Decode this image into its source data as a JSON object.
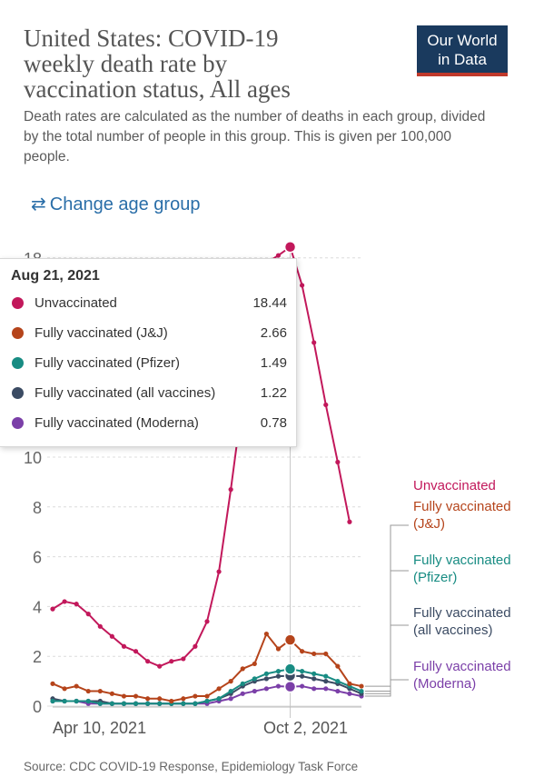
{
  "title_lines": [
    "United States: COVID-19",
    "weekly death rate by",
    "vaccination status, All ages"
  ],
  "logo": {
    "line1": "Our World",
    "line2": "in Data"
  },
  "subtitle": "Death rates are calculated as the number of deaths in each group, divided by the total number of people in this group. This is given per 100,000 people.",
  "change_age_label": "Change age group",
  "source": "Source: CDC COVID-19 Response, Epidemiology Task Force",
  "tooltip": {
    "date": "Aug 21, 2021",
    "rows": [
      {
        "label": "Unvaccinated",
        "value": "18.44",
        "color": "#c2185b"
      },
      {
        "label": "Fully vaccinated (J&J)",
        "value": "2.66",
        "color": "#b5441b"
      },
      {
        "label": "Fully vaccinated (Pfizer)",
        "value": "1.49",
        "color": "#188c83"
      },
      {
        "label": "Fully vaccinated (all vaccines)",
        "value": "1.22",
        "color": "#3b4b63"
      },
      {
        "label": "Fully vaccinated (Moderna)",
        "value": "0.78",
        "color": "#7b3fa8"
      }
    ]
  },
  "chart_data": {
    "type": "line",
    "title": "United States: COVID-19 weekly death rate by vaccination status, All ages",
    "ylim": [
      0,
      18
    ],
    "y_ticks": [
      0,
      2,
      4,
      6,
      8,
      10,
      18
    ],
    "x_tick_labels": [
      "Apr 10, 2021",
      "Oct 2, 2021"
    ],
    "x": [
      "2021-04-03",
      "2021-04-10",
      "2021-04-17",
      "2021-04-24",
      "2021-05-01",
      "2021-05-08",
      "2021-05-15",
      "2021-05-22",
      "2021-05-29",
      "2021-06-05",
      "2021-06-12",
      "2021-06-19",
      "2021-06-26",
      "2021-07-03",
      "2021-07-10",
      "2021-07-17",
      "2021-07-24",
      "2021-07-31",
      "2021-08-07",
      "2021-08-14",
      "2021-08-21",
      "2021-08-28",
      "2021-09-04",
      "2021-09-11",
      "2021-09-18",
      "2021-09-25",
      "2021-10-02"
    ],
    "highlight_index": 20,
    "grid": true,
    "legend_placement": "right",
    "series": [
      {
        "name": "Unvaccinated",
        "color": "#c2185b",
        "values": [
          3.9,
          4.2,
          4.1,
          3.7,
          3.2,
          2.8,
          2.4,
          2.2,
          1.8,
          1.6,
          1.8,
          1.9,
          2.4,
          3.4,
          5.4,
          8.7,
          12.3,
          15.7,
          17.8,
          18.1,
          18.44,
          16.9,
          14.6,
          12.1,
          9.8,
          7.4,
          null
        ]
      },
      {
        "name": "Fully vaccinated (J&J)",
        "color": "#b5441b",
        "values": [
          0.9,
          0.7,
          0.8,
          0.6,
          0.6,
          0.5,
          0.4,
          0.4,
          0.3,
          0.3,
          0.2,
          0.3,
          0.4,
          0.4,
          0.7,
          1.0,
          1.5,
          1.7,
          2.9,
          2.3,
          2.66,
          2.2,
          2.1,
          2.1,
          1.6,
          0.9,
          0.8
        ]
      },
      {
        "name": "Fully vaccinated (Pfizer)",
        "color": "#188c83",
        "values": [
          0.2,
          0.2,
          0.2,
          0.2,
          0.1,
          0.1,
          0.1,
          0.1,
          0.1,
          0.1,
          0.1,
          0.1,
          0.1,
          0.2,
          0.3,
          0.6,
          0.9,
          1.1,
          1.3,
          1.4,
          1.49,
          1.4,
          1.3,
          1.2,
          1.0,
          0.8,
          0.6
        ]
      },
      {
        "name": "Fully vaccinated (all vaccines)",
        "color": "#3b4b63",
        "values": [
          0.3,
          0.2,
          0.2,
          0.2,
          0.2,
          0.1,
          0.1,
          0.1,
          0.1,
          0.1,
          0.1,
          0.1,
          0.1,
          0.2,
          0.3,
          0.5,
          0.8,
          1.0,
          1.1,
          1.2,
          1.22,
          1.2,
          1.1,
          1.0,
          0.9,
          0.7,
          0.5
        ]
      },
      {
        "name": "Fully vaccinated (Moderna)",
        "color": "#7b3fa8",
        "values": [
          0.2,
          0.2,
          0.2,
          0.1,
          0.1,
          0.1,
          0.1,
          0.1,
          0.1,
          0.1,
          0.1,
          0.1,
          0.1,
          0.1,
          0.2,
          0.3,
          0.5,
          0.6,
          0.7,
          0.8,
          0.78,
          0.8,
          0.7,
          0.7,
          0.6,
          0.5,
          0.4
        ]
      }
    ]
  },
  "legend": [
    {
      "text": "Unvaccinated",
      "color": "#c2185b"
    },
    {
      "text": "Fully vaccinated (J&J)",
      "color": "#b5441b"
    },
    {
      "text": "Fully vaccinated (Pfizer)",
      "color": "#188c83"
    },
    {
      "text": "Fully vaccinated (all vaccines)",
      "color": "#3b4b63"
    },
    {
      "text": "Fully vaccinated (Moderna)",
      "color": "#7b3fa8"
    }
  ]
}
